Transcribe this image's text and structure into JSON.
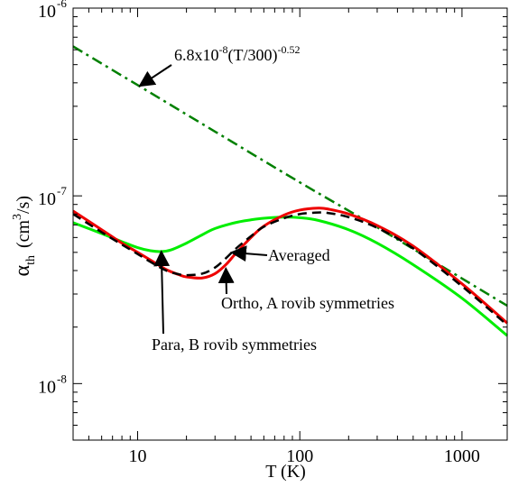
{
  "chart_data": {
    "type": "line",
    "x_scale": "log",
    "y_scale": "log",
    "xlim": [
      4,
      1900
    ],
    "ylim": [
      5e-09,
      1e-06
    ],
    "grid": false,
    "xlabel": "T (K)",
    "ylabel": {
      "main": "α",
      "sub": "th",
      "unit_pre": "(cm",
      "unit_sup": "3",
      "unit_post": "/s)"
    },
    "x_ticks": [
      {
        "value": 10,
        "label": "10"
      },
      {
        "value": 100,
        "label": "100"
      },
      {
        "value": 1000,
        "label": "1000"
      }
    ],
    "y_ticks": [
      {
        "value": 1e-08,
        "base": "10",
        "exp": "-8"
      },
      {
        "value": 1e-07,
        "base": "10",
        "exp": "-7"
      },
      {
        "value": 1e-06,
        "base": "10",
        "exp": "-6"
      }
    ],
    "series": [
      {
        "id": "fit",
        "color": "#008000",
        "style": "dashdot",
        "x": [
          4,
          10,
          30,
          100,
          300,
          1000,
          1900
        ],
        "y": [
          6.25e-07,
          3.89e-07,
          2.2e-07,
          1.18e-07,
          6.8e-08,
          3.63e-08,
          2.6e-08
        ]
      },
      {
        "id": "para-b",
        "color": "#00ee00",
        "style": "solid",
        "x": [
          4,
          6,
          8,
          10,
          12,
          14,
          16,
          20,
          25,
          30,
          40,
          50,
          60,
          80,
          100,
          130,
          200,
          300,
          500,
          1000,
          1900
        ],
        "y": [
          7.2e-08,
          6.3e-08,
          5.7e-08,
          5.3e-08,
          5.1e-08,
          5.05e-08,
          5.15e-08,
          5.6e-08,
          6.2e-08,
          6.7e-08,
          7.2e-08,
          7.45e-08,
          7.6e-08,
          7.7e-08,
          7.65e-08,
          7.4e-08,
          6.6e-08,
          5.6e-08,
          4.3e-08,
          2.85e-08,
          1.8e-08
        ]
      },
      {
        "id": "ortho-a",
        "color": "#ee0000",
        "style": "solid",
        "x": [
          4,
          6,
          8,
          10,
          12,
          15,
          18,
          20,
          25,
          30,
          35,
          40,
          50,
          60,
          80,
          100,
          130,
          150,
          200,
          300,
          500,
          1000,
          1900
        ],
        "y": [
          8.3e-08,
          6.6e-08,
          5.6e-08,
          5e-08,
          4.55e-08,
          4.05e-08,
          3.8e-08,
          3.7e-08,
          3.65e-08,
          3.85e-08,
          4.3e-08,
          4.9e-08,
          6e-08,
          6.9e-08,
          7.9e-08,
          8.4e-08,
          8.6e-08,
          8.5e-08,
          8e-08,
          6.95e-08,
          5.4e-08,
          3.4e-08,
          2.1e-08
        ]
      },
      {
        "id": "averaged",
        "color": "#000000",
        "style": "dashed",
        "x": [
          4,
          6,
          8,
          10,
          12,
          15,
          18,
          20,
          25,
          30,
          35,
          40,
          50,
          60,
          80,
          100,
          130,
          150,
          200,
          300,
          500,
          1000,
          1900
        ],
        "y": [
          8e-08,
          6.4e-08,
          5.5e-08,
          4.9e-08,
          4.45e-08,
          4e-08,
          3.82e-08,
          3.78e-08,
          3.85e-08,
          4.15e-08,
          4.65e-08,
          5.2e-08,
          6.1e-08,
          6.85e-08,
          7.6e-08,
          8e-08,
          8.15e-08,
          8.1e-08,
          7.7e-08,
          6.75e-08,
          5.25e-08,
          3.3e-08,
          2.05e-08
        ]
      }
    ],
    "annotations": [
      {
        "id": "fit-label",
        "text": "6.8x10",
        "sup1": "-8",
        "text2": "(T/300)",
        "sup2": "-0.52",
        "arrow_to": {
          "x": 10.3,
          "y": 3.85e-07
        }
      },
      {
        "id": "averaged-label",
        "text": "Averaged",
        "arrow_to": {
          "x": 38,
          "y": 5e-08
        }
      },
      {
        "id": "ortho-label",
        "text": "Ortho, A rovib symmetries",
        "arrow_to": {
          "x": 35,
          "y": 4.1e-08
        }
      },
      {
        "id": "para-label",
        "text": "Para, B rovib symmetries",
        "arrow_to": {
          "x": 14,
          "y": 5.05e-08
        }
      }
    ]
  }
}
